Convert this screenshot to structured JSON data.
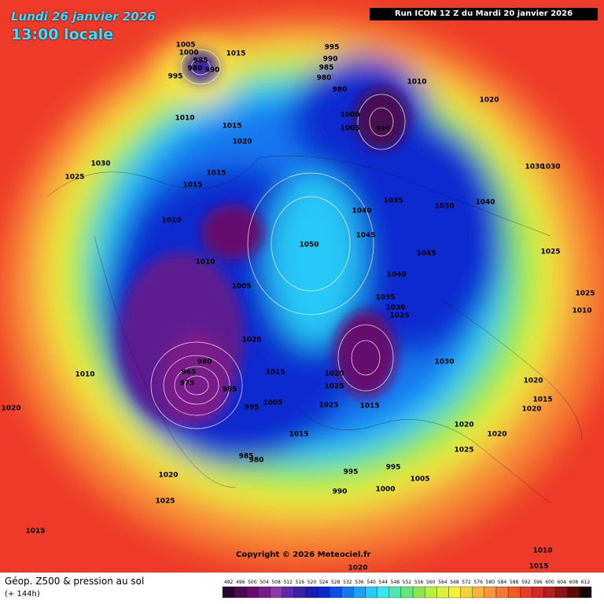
{
  "header": {
    "date": "Lundi 26 janvier 2026",
    "time": "13:00 locale",
    "run": "Run ICON 12 Z du Mardi 20 janvier 2026"
  },
  "copyright": "Copyright © 2026 Meteociel.fr",
  "footer": {
    "title": "Géop. Z500 & pression au sol",
    "lead": "(+ 144h)"
  },
  "scale": {
    "values": [
      492,
      496,
      500,
      504,
      508,
      512,
      516,
      520,
      524,
      528,
      532,
      536,
      540,
      544,
      548,
      552,
      556,
      560,
      564,
      568,
      572,
      576,
      580,
      584,
      588,
      592,
      596,
      600,
      604,
      608,
      612
    ],
    "colors": [
      "#2d0032",
      "#4a0a52",
      "#650a6e",
      "#7a1a8a",
      "#8a3aa8",
      "#5c2aa8",
      "#3a20a8",
      "#1a1ab4",
      "#0a2ad0",
      "#0a50e8",
      "#1478f0",
      "#1ea0f5",
      "#28c8f5",
      "#3ce6e6",
      "#50e6b4",
      "#64e67a",
      "#8ce650",
      "#b4f03c",
      "#dcf03c",
      "#f5f03c",
      "#f5d23c",
      "#f5b43c",
      "#f5963c",
      "#f57832",
      "#f05a28",
      "#e63c28",
      "#d22828",
      "#b41e1e",
      "#8c1414",
      "#5a0a0a",
      "#1e0000"
    ]
  },
  "pressure_labels": [
    "1005",
    "1000",
    "985",
    "980",
    "990",
    "995",
    "1015",
    "1010",
    "995",
    "990",
    "985",
    "980",
    "980",
    "1010",
    "1015",
    "1020",
    "1030",
    "1025",
    "1015",
    "1010",
    "1000",
    "1005",
    "990",
    "1020",
    "1015",
    "1030",
    "1040",
    "1035",
    "1030",
    "1040",
    "1050",
    "1045",
    "1045",
    "1040",
    "1035",
    "1030",
    "1025",
    "1010",
    "1005",
    "1030",
    "1020",
    "1015",
    "980",
    "965",
    "975",
    "985",
    "995",
    "1005",
    "985",
    "980",
    "1020",
    "1025",
    "995",
    "990",
    "995",
    "1000",
    "1005",
    "1015",
    "1025",
    "1015",
    "1020",
    "1020",
    "1025",
    "1020",
    "1025",
    "1015",
    "1030",
    "1025",
    "1020",
    "1015",
    "1020",
    "1020",
    "1025",
    "1010",
    "1010",
    "1015",
    "1010",
    "1020"
  ]
}
